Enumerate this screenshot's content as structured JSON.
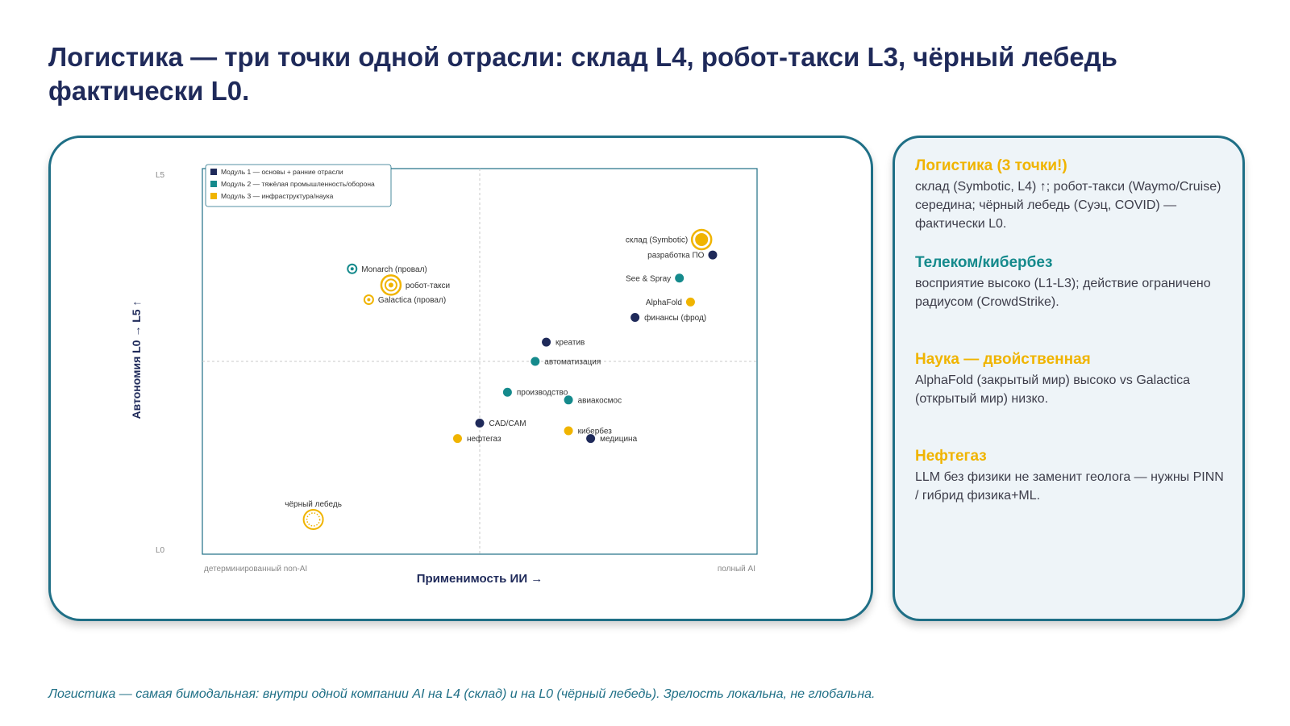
{
  "slide": {
    "title": "Логистика — три точки одной отрасли: склад L4, робот-такси L3, чёрный лебедь фактически L0.",
    "footer": "Логистика — самая бимодальная: внутри одной компании AI на L4 (склад) и на L0 (чёрный лебедь). Зрелость локальна, не глобальна."
  },
  "colors": {
    "module1": "#1f2a5a",
    "module2": "#158a8c",
    "module3": "#f0b400",
    "title": "#1f2a5a",
    "accent_teal": "#1f6f86"
  },
  "chart_data": {
    "type": "scatter",
    "xlabel": "Применимость ИИ →",
    "ylabel": "Автономия L0 → L5 ↑",
    "x_tick_left": "детерминированный non-AI",
    "x_tick_right": "полный AI",
    "y_tick_top": "L5",
    "y_tick_bottom": "L0",
    "xlim": [
      0,
      1
    ],
    "ylim": [
      0,
      5
    ],
    "quadrant_lines": true,
    "legend_position": "top-left",
    "legend": [
      {
        "label": "Модуль 1 — основы + ранние отрасли",
        "color": "#1f2a5a"
      },
      {
        "label": "Модуль 2 — тяжёлая промышленность/оборона",
        "color": "#158a8c"
      },
      {
        "label": "Модуль 3 — инфраструктура/наука",
        "color": "#f0b400"
      }
    ],
    "points": [
      {
        "label": "склад (Symbotic)",
        "x": 0.9,
        "y": 4.08,
        "module": 3,
        "style": "ringed",
        "label_side": "left"
      },
      {
        "label": "разработка ПО",
        "x": 0.92,
        "y": 3.88,
        "module": 1,
        "style": "solid",
        "label_side": "left"
      },
      {
        "label": "See & Spray",
        "x": 0.86,
        "y": 3.58,
        "module": 2,
        "style": "solid",
        "label_side": "left"
      },
      {
        "label": "AlphaFold",
        "x": 0.88,
        "y": 3.27,
        "module": 3,
        "style": "solid",
        "label_side": "left"
      },
      {
        "label": "финансы (фрод)",
        "x": 0.78,
        "y": 3.07,
        "module": 1,
        "style": "solid",
        "label_side": "right"
      },
      {
        "label": "Monarch (провал)",
        "x": 0.27,
        "y": 3.7,
        "module": 2,
        "style": "hollow",
        "label_side": "right"
      },
      {
        "label": "робот-такси",
        "x": 0.34,
        "y": 3.49,
        "module": 3,
        "style": "ringed",
        "label_side": "right"
      },
      {
        "label": "Galactica (провал)",
        "x": 0.3,
        "y": 3.3,
        "module": 3,
        "style": "hollow",
        "label_side": "right"
      },
      {
        "label": "креатив",
        "x": 0.62,
        "y": 2.75,
        "module": 1,
        "style": "solid",
        "label_side": "right"
      },
      {
        "label": "автоматизация",
        "x": 0.6,
        "y": 2.5,
        "module": 2,
        "style": "solid",
        "label_side": "right"
      },
      {
        "label": "производство",
        "x": 0.55,
        "y": 2.1,
        "module": 2,
        "style": "solid",
        "label_side": "right"
      },
      {
        "label": "авиакосмос",
        "x": 0.66,
        "y": 2.0,
        "module": 2,
        "style": "solid",
        "label_side": "right"
      },
      {
        "label": "CAD/CAM",
        "x": 0.5,
        "y": 1.7,
        "module": 1,
        "style": "solid",
        "label_side": "right"
      },
      {
        "label": "нефтегаз",
        "x": 0.46,
        "y": 1.5,
        "module": 3,
        "style": "solid",
        "label_side": "right"
      },
      {
        "label": "кибербез",
        "x": 0.66,
        "y": 1.6,
        "module": 3,
        "style": "solid",
        "label_side": "right"
      },
      {
        "label": "медицина",
        "x": 0.7,
        "y": 1.5,
        "module": 1,
        "style": "solid",
        "label_side": "right"
      },
      {
        "label": "чёрный лебедь",
        "x": 0.2,
        "y": 0.45,
        "module": 3,
        "style": "dotted",
        "label_side": "above"
      }
    ]
  },
  "sidebar": {
    "sections": [
      {
        "heading": "Логистика (3 точки!)",
        "color": "#f0b400",
        "body": "склад (Symbotic, L4) ↑; робот-такси (Waymo/Cruise) середина; чёрный лебедь (Суэц, COVID) — фактически L0."
      },
      {
        "heading": "Телеком/кибербез",
        "color": "#158a8c",
        "body": "восприятие высоко (L1-L3); действие ограничено радиусом (CrowdStrike)."
      },
      {
        "heading": "Наука — двойственная",
        "color": "#f0b400",
        "body": "AlphaFold (закрытый мир) высоко vs Galactica (открытый мир) низко."
      },
      {
        "heading": "Нефтегаз",
        "color": "#f0b400",
        "body": "LLM без физики не заменит геолога — нужны PINN / гибрид физика+ML."
      }
    ]
  }
}
